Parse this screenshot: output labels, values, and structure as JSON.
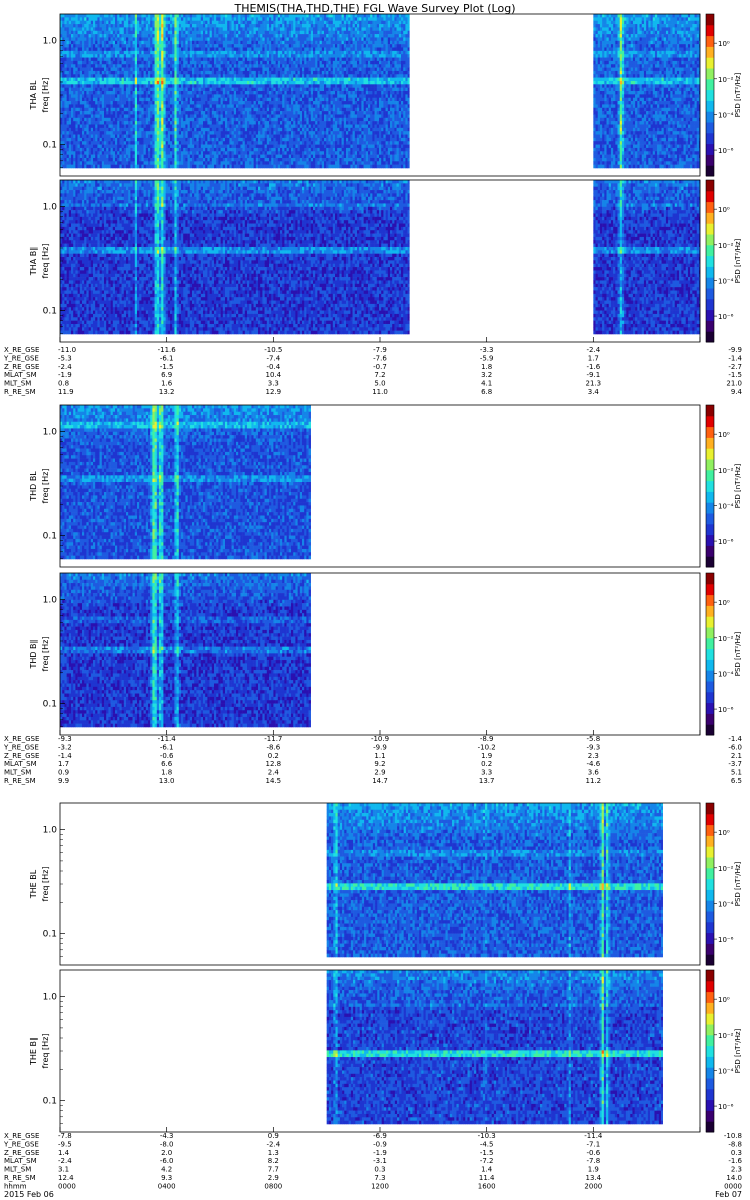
{
  "title": "THEMIS(THA,THD,THE) FGL Wave Survey Plot (Log)",
  "colors": {
    "colormap": [
      "#1a0033",
      "#3a006e",
      "#2a10b0",
      "#1f35d0",
      "#1e5ae0",
      "#1585e8",
      "#10b8ee",
      "#20e0e0",
      "#40f0a0",
      "#90f060",
      "#e8f030",
      "#ffb020",
      "#ff6010",
      "#e00000",
      "#8a0000"
    ]
  },
  "chart_data": [
    {
      "id": "tha_bl",
      "type": "heatmap",
      "probe": "tha",
      "ylabel_top": "THA BL",
      "ylabel": "freq [Hz]",
      "colorbar_label": "PSD [nT²/Hz]",
      "yscale": "log",
      "ylim": [
        0.05,
        1.8
      ],
      "yticks": [
        "1.0",
        "0.1"
      ],
      "zscale": "log",
      "zticks": [
        "10⁰",
        "10⁻²",
        "10⁻⁴",
        "10⁻⁶"
      ],
      "xlim_hours": [
        0,
        24
      ],
      "data_intervals_hours": [
        [
          0,
          13.1
        ],
        [
          20.0,
          24
        ]
      ],
      "base_level": 0.3,
      "bright_lines": [
        {
          "t": 3.6,
          "w": 0.14,
          "a": 0.35
        },
        {
          "t": 3.8,
          "w": 0.12,
          "a": 0.33
        },
        {
          "t": 4.3,
          "w": 0.1,
          "a": 0.25
        },
        {
          "t": 21.0,
          "w": 0.12,
          "a": 0.32
        },
        {
          "t": 2.8,
          "w": 0.04,
          "a": 0.2
        }
      ],
      "bands": [
        {
          "f": 0.38,
          "a": 0.16
        },
        {
          "f": 0.7,
          "a": 0.08
        }
      ]
    },
    {
      "id": "tha_bll",
      "type": "heatmap",
      "probe": "tha",
      "ylabel_top": "THA B∥",
      "ylabel": "freq [Hz]",
      "colorbar_label": "PSD [nT²/Hz]",
      "yscale": "log",
      "ylim": [
        0.05,
        1.8
      ],
      "yticks": [
        "1.0",
        "0.1"
      ],
      "zscale": "log",
      "zticks": [
        "10⁰",
        "10⁻²",
        "10⁻⁴",
        "10⁻⁶"
      ],
      "xlim_hours": [
        0,
        24
      ],
      "data_intervals_hours": [
        [
          0,
          13.1
        ],
        [
          20.0,
          24
        ]
      ],
      "base_level": 0.24,
      "bright_lines": [
        {
          "t": 3.6,
          "w": 0.14,
          "a": 0.3
        },
        {
          "t": 3.8,
          "w": 0.12,
          "a": 0.28
        },
        {
          "t": 4.3,
          "w": 0.1,
          "a": 0.2
        },
        {
          "t": 21.0,
          "w": 0.12,
          "a": 0.22
        },
        {
          "t": 2.8,
          "w": 0.04,
          "a": 0.18
        }
      ],
      "bands": [
        {
          "f": 0.35,
          "a": 0.14
        },
        {
          "f": 1.0,
          "a": 0.06
        }
      ]
    },
    {
      "id": "thd_bl",
      "type": "heatmap",
      "probe": "thd",
      "ylabel_top": "THD BL",
      "ylabel": "freq [Hz]",
      "colorbar_label": "PSD [nT²/Hz]",
      "yscale": "log",
      "ylim": [
        0.05,
        1.8
      ],
      "yticks": [
        "1.0",
        "0.1"
      ],
      "zscale": "log",
      "zticks": [
        "10⁰",
        "10⁻²",
        "10⁻⁴",
        "10⁻⁶"
      ],
      "xlim_hours": [
        0,
        24
      ],
      "data_intervals_hours": [
        [
          0,
          9.4
        ]
      ],
      "base_level": 0.28,
      "bright_lines": [
        {
          "t": 3.5,
          "w": 0.16,
          "a": 0.36
        },
        {
          "t": 3.75,
          "w": 0.12,
          "a": 0.32
        },
        {
          "t": 4.35,
          "w": 0.12,
          "a": 0.26
        }
      ],
      "bands": [
        {
          "f": 0.33,
          "a": 0.1
        },
        {
          "f": 1.1,
          "a": 0.1
        }
      ]
    },
    {
      "id": "thd_bll",
      "type": "heatmap",
      "probe": "thd",
      "ylabel_top": "THD B∥",
      "ylabel": "freq [Hz]",
      "colorbar_label": "PSD [nT²/Hz]",
      "yscale": "log",
      "ylim": [
        0.05,
        1.8
      ],
      "yticks": [
        "1.0",
        "0.1"
      ],
      "zscale": "log",
      "zticks": [
        "10⁰",
        "10⁻²",
        "10⁻⁴",
        "10⁻⁶"
      ],
      "xlim_hours": [
        0,
        24
      ],
      "data_intervals_hours": [
        [
          0,
          9.4
        ]
      ],
      "base_level": 0.24,
      "bright_lines": [
        {
          "t": 3.5,
          "w": 0.16,
          "a": 0.34
        },
        {
          "t": 3.75,
          "w": 0.12,
          "a": 0.3
        },
        {
          "t": 4.35,
          "w": 0.12,
          "a": 0.22
        }
      ],
      "bands": [
        {
          "f": 0.3,
          "a": 0.1
        },
        {
          "f": 0.6,
          "a": 0.06
        }
      ]
    },
    {
      "id": "the_bl",
      "type": "heatmap",
      "probe": "the",
      "ylabel_top": "THE BL",
      "ylabel": "freq [Hz]",
      "colorbar_label": "PSD [nT²/Hz]",
      "yscale": "log",
      "ylim": [
        0.05,
        1.8
      ],
      "yticks": [
        "1.0",
        "0.1"
      ],
      "zscale": "log",
      "zticks": [
        "10⁰",
        "10⁻²",
        "10⁻⁴",
        "10⁻⁶"
      ],
      "xlim_hours": [
        0,
        24
      ],
      "data_intervals_hours": [
        [
          10.0,
          22.6
        ]
      ],
      "base_level": 0.3,
      "bright_lines": [
        {
          "t": 10.3,
          "w": 0.08,
          "a": 0.22
        },
        {
          "t": 15.9,
          "w": 0.05,
          "a": 0.16
        },
        {
          "t": 19.1,
          "w": 0.06,
          "a": 0.18
        },
        {
          "t": 20.3,
          "w": 0.1,
          "a": 0.3
        },
        {
          "t": 20.5,
          "w": 0.08,
          "a": 0.26
        }
      ],
      "bands": [
        {
          "f": 0.25,
          "a": 0.2
        },
        {
          "f": 0.55,
          "a": 0.06
        }
      ]
    },
    {
      "id": "the_bll",
      "type": "heatmap",
      "probe": "the",
      "ylabel_top": "THE B∥",
      "ylabel": "freq [Hz]",
      "colorbar_label": "PSD [nT²/Hz]",
      "yscale": "log",
      "ylim": [
        0.05,
        1.8
      ],
      "yticks": [
        "1.0",
        "0.1"
      ],
      "zscale": "log",
      "zticks": [
        "10⁰",
        "10⁻²",
        "10⁻⁴",
        "10⁻⁶"
      ],
      "xlim_hours": [
        0,
        24
      ],
      "data_intervals_hours": [
        [
          10.0,
          22.6
        ]
      ],
      "base_level": 0.26,
      "bright_lines": [
        {
          "t": 10.3,
          "w": 0.08,
          "a": 0.2
        },
        {
          "t": 15.9,
          "w": 0.05,
          "a": 0.18
        },
        {
          "t": 19.1,
          "w": 0.06,
          "a": 0.16
        },
        {
          "t": 20.3,
          "w": 0.1,
          "a": 0.32
        },
        {
          "t": 20.5,
          "w": 0.08,
          "a": 0.26
        }
      ],
      "bands": [
        {
          "f": 0.26,
          "a": 0.24
        },
        {
          "f": 0.8,
          "a": 0.05
        }
      ]
    }
  ],
  "ephemeris": [
    {
      "probe": "tha",
      "rows": [
        {
          "label": "X_RE_GSE",
          "values": [
            "-11.0",
            "-11.6",
            "-10.5",
            "-7.9",
            "-3.3",
            "-2.4",
            "-9.9"
          ]
        },
        {
          "label": "Y_RE_GSE",
          "values": [
            "-5.3",
            "-6.1",
            "-7.4",
            "-7.6",
            "-5.9",
            "1.7",
            "-1.4"
          ]
        },
        {
          "label": "Z_RE_GSE",
          "values": [
            "-2.4",
            "-1.5",
            "-0.4",
            "-0.7",
            "1.8",
            "-1.6",
            "-2.7"
          ]
        },
        {
          "label": "MLAT_SM",
          "values": [
            "-1.9",
            "6.9",
            "10.4",
            "7.2",
            "3.2",
            "-9.1",
            "-1.5"
          ]
        },
        {
          "label": "MLT_SM",
          "values": [
            "0.8",
            "1.6",
            "3.3",
            "5.0",
            "4.1",
            "21.3",
            "21.0"
          ]
        },
        {
          "label": "R_RE_SM",
          "values": [
            "11.9",
            "13.2",
            "12.9",
            "11.0",
            "6.8",
            "3.4",
            "9.4"
          ]
        }
      ]
    },
    {
      "probe": "thd",
      "rows": [
        {
          "label": "X_RE_GSE",
          "values": [
            "-9.3",
            "-11.4",
            "-11.7",
            "-10.9",
            "-8.9",
            "-5.8",
            "-1.4"
          ]
        },
        {
          "label": "Y_RE_GSE",
          "values": [
            "-3.2",
            "-6.1",
            "-8.6",
            "-9.9",
            "-10.2",
            "-9.3",
            "-6.0"
          ]
        },
        {
          "label": "Z_RE_GSE",
          "values": [
            "-1.4",
            "-0.6",
            "0.2",
            "1.1",
            "1.9",
            "2.3",
            "2.1"
          ]
        },
        {
          "label": "MLAT_SM",
          "values": [
            "1.7",
            "6.6",
            "12.8",
            "9.2",
            "0.2",
            "-4.6",
            "-3.7"
          ]
        },
        {
          "label": "MLT_SM",
          "values": [
            "0.9",
            "1.8",
            "2.4",
            "2.9",
            "3.3",
            "3.6",
            "5.1"
          ]
        },
        {
          "label": "R_RE_SM",
          "values": [
            "9.9",
            "13.0",
            "14.5",
            "14.7",
            "13.7",
            "11.2",
            "6.5"
          ]
        }
      ]
    },
    {
      "probe": "the",
      "rows": [
        {
          "label": "X_RE_GSE",
          "values": [
            "-7.8",
            "-4.3",
            "0.9",
            "-6.9",
            "-10.3",
            "-11.4",
            "-10.8"
          ]
        },
        {
          "label": "Y_RE_GSE",
          "values": [
            "-9.5",
            "-8.0",
            "-2.4",
            "-0.9",
            "-4.5",
            "-7.1",
            "-8.8"
          ]
        },
        {
          "label": "Z_RE_GSE",
          "values": [
            "1.4",
            "2.0",
            "1.3",
            "-1.9",
            "-1.5",
            "-0.6",
            "0.3"
          ]
        },
        {
          "label": "MLAT_SM",
          "values": [
            "-2.4",
            "-6.0",
            "8.2",
            "-3.1",
            "-7.2",
            "-7.8",
            "-1.6"
          ]
        },
        {
          "label": "MLT_SM",
          "values": [
            "3.1",
            "4.2",
            "7.7",
            "0.3",
            "1.4",
            "1.9",
            "2.3"
          ]
        },
        {
          "label": "R_RE_SM",
          "values": [
            "12.4",
            "9.3",
            "2.9",
            "7.3",
            "11.4",
            "13.4",
            "14.0"
          ]
        },
        {
          "label": "hhmm",
          "values": [
            "0000",
            "0400",
            "0800",
            "1200",
            "1600",
            "2000",
            "0000"
          ]
        }
      ]
    }
  ],
  "date_start": "2015 Feb 06",
  "date_end": "Feb 07"
}
